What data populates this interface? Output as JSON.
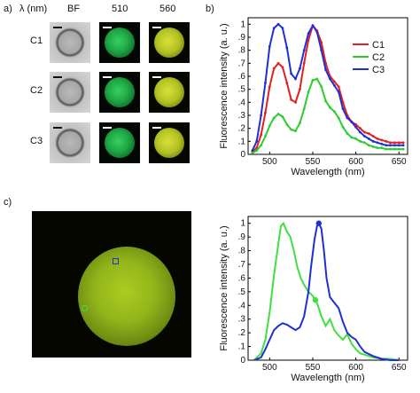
{
  "panel_a": {
    "letter": "a)",
    "lambda_label": "λ (nm)",
    "columns": [
      "BF",
      "510",
      "560"
    ],
    "rows": [
      "C1",
      "C2",
      "C3"
    ]
  },
  "panel_c": {
    "letter": "c)"
  },
  "panel_b_letter": "b)",
  "chart_data": [
    {
      "type": "line",
      "panel": "b",
      "xlabel": "Wavelength (nm)",
      "ylabel": "Fluorescence intensity (a. u.)",
      "xlim": [
        475,
        660
      ],
      "ylim": [
        0,
        1.05
      ],
      "xticks": [
        500,
        550,
        600,
        650
      ],
      "yticks": [
        0,
        0.1,
        0.2,
        0.3,
        0.4,
        0.5,
        0.6,
        0.7,
        0.8,
        0.9,
        1
      ],
      "legend_position": "top-right",
      "series": [
        {
          "name": "C1",
          "color": "#e32020",
          "x": [
            480,
            485,
            490,
            495,
            500,
            505,
            510,
            515,
            520,
            525,
            530,
            535,
            540,
            545,
            550,
            555,
            560,
            565,
            570,
            575,
            580,
            585,
            590,
            595,
            600,
            605,
            610,
            615,
            620,
            625,
            630,
            635,
            640,
            645,
            650,
            655
          ],
          "y": [
            0.02,
            0.05,
            0.15,
            0.32,
            0.52,
            0.66,
            0.7,
            0.67,
            0.55,
            0.42,
            0.4,
            0.5,
            0.7,
            0.88,
            0.99,
            0.95,
            0.86,
            0.7,
            0.6,
            0.56,
            0.52,
            0.4,
            0.3,
            0.25,
            0.23,
            0.2,
            0.17,
            0.16,
            0.14,
            0.12,
            0.11,
            0.1,
            0.09,
            0.09,
            0.09,
            0.09
          ]
        },
        {
          "name": "C2",
          "color": "#2ecc2e",
          "x": [
            480,
            485,
            490,
            495,
            500,
            505,
            510,
            515,
            520,
            525,
            530,
            535,
            540,
            545,
            550,
            555,
            560,
            565,
            570,
            575,
            580,
            585,
            590,
            595,
            600,
            605,
            610,
            615,
            620,
            625,
            630,
            635,
            640,
            645,
            650,
            655
          ],
          "y": [
            0.01,
            0.03,
            0.07,
            0.14,
            0.22,
            0.28,
            0.31,
            0.29,
            0.23,
            0.19,
            0.18,
            0.24,
            0.35,
            0.48,
            0.57,
            0.58,
            0.52,
            0.41,
            0.36,
            0.33,
            0.28,
            0.21,
            0.16,
            0.13,
            0.12,
            0.1,
            0.09,
            0.07,
            0.06,
            0.05,
            0.05,
            0.04,
            0.04,
            0.04,
            0.04,
            0.04
          ]
        },
        {
          "name": "C3",
          "color": "#1f2fd6",
          "x": [
            480,
            485,
            490,
            495,
            500,
            505,
            510,
            515,
            520,
            525,
            530,
            535,
            540,
            545,
            550,
            555,
            560,
            565,
            570,
            575,
            580,
            585,
            590,
            595,
            600,
            605,
            610,
            615,
            620,
            625,
            630,
            635,
            640,
            645,
            650,
            655
          ],
          "y": [
            0.03,
            0.1,
            0.3,
            0.55,
            0.83,
            0.97,
            1.0,
            0.97,
            0.82,
            0.62,
            0.58,
            0.66,
            0.8,
            0.93,
            0.99,
            0.94,
            0.8,
            0.65,
            0.58,
            0.53,
            0.48,
            0.35,
            0.28,
            0.25,
            0.21,
            0.17,
            0.14,
            0.12,
            0.1,
            0.09,
            0.08,
            0.07,
            0.07,
            0.07,
            0.07,
            0.07
          ]
        }
      ]
    },
    {
      "type": "line",
      "panel": "c",
      "xlabel": "Wavelength (nm)",
      "ylabel": "Fluorescence intensity (a. u.)",
      "xlim": [
        475,
        660
      ],
      "ylim": [
        0,
        1.05
      ],
      "xticks": [
        500,
        550,
        600,
        650
      ],
      "yticks": [
        0,
        0.1,
        0.2,
        0.3,
        0.4,
        0.5,
        0.6,
        0.7,
        0.8,
        0.9,
        1
      ],
      "series": [
        {
          "color": "#3fe03f",
          "marker": {
            "x": 553,
            "y": 0.44
          },
          "x": [
            482,
            490,
            495,
            500,
            505,
            510,
            513,
            516,
            520,
            524,
            528,
            532,
            536,
            540,
            545,
            550,
            553,
            556,
            560,
            565,
            570,
            575,
            580,
            585,
            590,
            595,
            600,
            605,
            610,
            620,
            630,
            640,
            650
          ],
          "y": [
            0.0,
            0.05,
            0.15,
            0.35,
            0.62,
            0.85,
            0.98,
            1.0,
            0.94,
            0.9,
            0.8,
            0.68,
            0.6,
            0.55,
            0.5,
            0.47,
            0.44,
            0.4,
            0.32,
            0.25,
            0.3,
            0.22,
            0.18,
            0.15,
            0.19,
            0.12,
            0.08,
            0.05,
            0.04,
            0.02,
            0.01,
            0.01,
            0.0
          ]
        },
        {
          "color": "#1f2fd6",
          "marker": {
            "x": 557,
            "y": 1.0
          },
          "x": [
            482,
            490,
            495,
            500,
            505,
            510,
            515,
            520,
            525,
            530,
            535,
            540,
            545,
            548,
            552,
            555,
            557,
            560,
            563,
            566,
            570,
            575,
            580,
            585,
            590,
            595,
            600,
            605,
            610,
            620,
            630,
            640,
            650
          ],
          "y": [
            0.0,
            0.02,
            0.08,
            0.15,
            0.22,
            0.25,
            0.27,
            0.26,
            0.24,
            0.22,
            0.24,
            0.32,
            0.5,
            0.68,
            0.88,
            0.98,
            1.0,
            0.96,
            0.8,
            0.6,
            0.46,
            0.42,
            0.38,
            0.28,
            0.2,
            0.17,
            0.15,
            0.1,
            0.06,
            0.03,
            0.01,
            0.0,
            0.0
          ]
        }
      ]
    }
  ]
}
